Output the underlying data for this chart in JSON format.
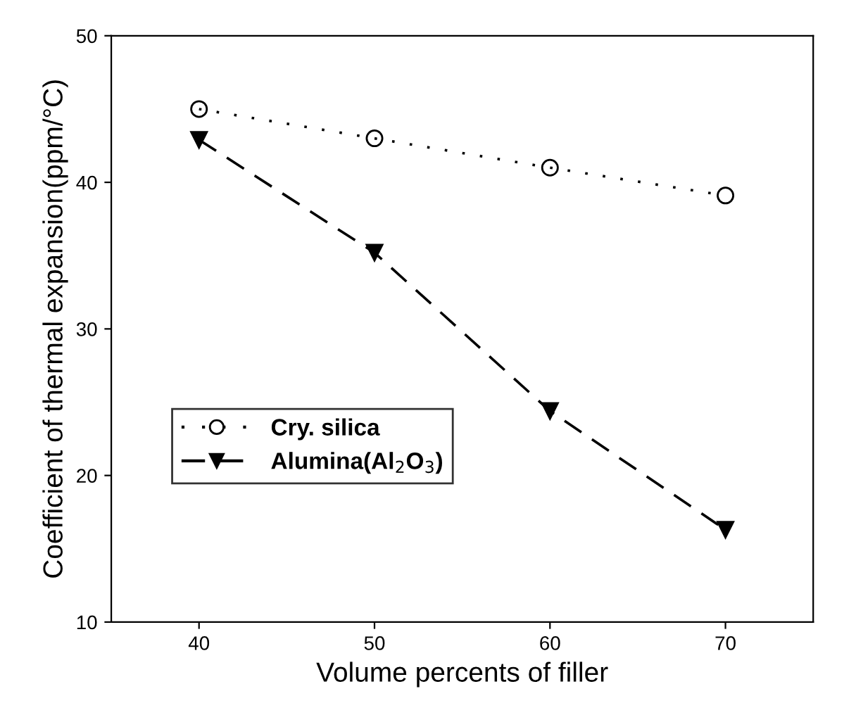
{
  "chart_data": {
    "type": "line",
    "xlabel": "Volume percents of filler",
    "ylabel": "Coefficient of thermal expansion(ppm/°C)",
    "x": [
      40,
      50,
      60,
      70
    ],
    "xlim": [
      35,
      75
    ],
    "xticks": [
      40,
      50,
      60,
      70
    ],
    "ylim": [
      10,
      50
    ],
    "yticks": [
      10,
      20,
      30,
      40,
      50
    ],
    "grid": false,
    "legend": "left",
    "series": [
      {
        "name": "Cry. silica",
        "color": "#000000",
        "values": [
          45,
          43,
          41,
          39.1
        ],
        "marker": "circle",
        "line_style": "dotted"
      },
      {
        "name": "Alumina(Al$_{2}$O$_{3}$)",
        "color": "#000000",
        "values": [
          42.9,
          35.2,
          24.4,
          16.3
        ],
        "marker": "triangle",
        "line_style": "dashed"
      }
    ]
  }
}
